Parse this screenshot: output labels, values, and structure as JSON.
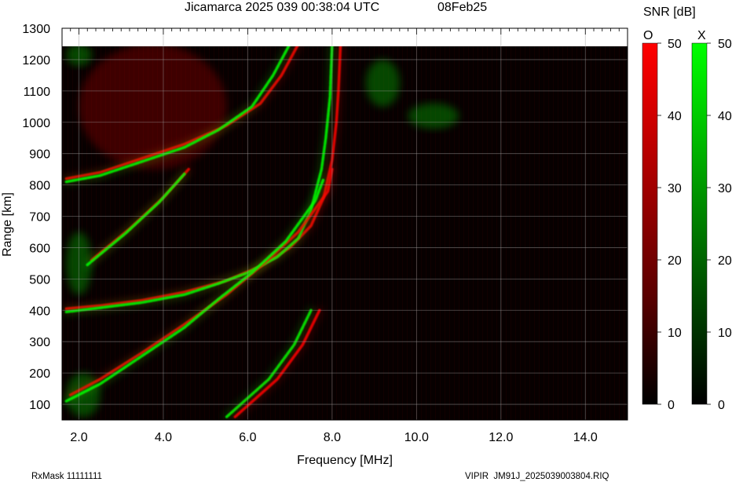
{
  "header": {
    "title": "Jicamarca 2025 039 00:38:04 UTC",
    "date": "08Feb25"
  },
  "footer": {
    "rxmask": "RxMask 11111111",
    "filename": "VIPIR  JM91J_2025039003804.RIQ"
  },
  "colorbar": {
    "title": "SNR [dB]",
    "o_label": "O",
    "x_label": "X",
    "o_color": "#ff0000",
    "x_color": "#00ff00",
    "o_ticks": [
      "50",
      "40",
      "30",
      "20",
      "10",
      "0"
    ],
    "x_ticks": [
      "50",
      "40",
      "30",
      "20",
      "10",
      "0"
    ]
  },
  "chart_data": {
    "type": "heatmap",
    "title": "Jicamarca 2025 039 00:38:04 UTC",
    "xlabel": "Frequency [MHz]",
    "ylabel": "Range [km]",
    "xlim": [
      1.6,
      15.0
    ],
    "ylim": [
      50,
      1300
    ],
    "data_ylim_top": 1250,
    "x_ticks": [
      2,
      4,
      6,
      8,
      10,
      12,
      14
    ],
    "x_tick_labels": [
      "2.0",
      "4.0",
      "6.0",
      "8.0",
      "10.0",
      "12.0",
      "14.0"
    ],
    "y_ticks": [
      100,
      200,
      300,
      400,
      500,
      600,
      700,
      800,
      900,
      1000,
      1100,
      1200,
      1300
    ],
    "y_tick_labels": [
      "100",
      "200",
      "300",
      "400",
      "500",
      "600",
      "700",
      "800",
      "900",
      "1000",
      "1100",
      "1200",
      "1300"
    ],
    "snr_range_db": [
      0,
      50
    ],
    "grid": true,
    "traces": [
      {
        "name": "O",
        "points": [
          [
            1.7,
            405
          ],
          [
            2.5,
            415
          ],
          [
            3.5,
            432
          ],
          [
            4.5,
            458
          ],
          [
            5.5,
            495
          ],
          [
            6.3,
            540
          ],
          [
            7.0,
            600
          ],
          [
            7.5,
            670
          ],
          [
            7.8,
            760
          ],
          [
            8.0,
            880
          ],
          [
            8.1,
            1000
          ],
          [
            8.15,
            1100
          ],
          [
            8.2,
            1250
          ]
        ]
      },
      {
        "name": "X",
        "points": [
          [
            1.7,
            395
          ],
          [
            2.5,
            408
          ],
          [
            3.5,
            425
          ],
          [
            4.5,
            450
          ],
          [
            5.3,
            485
          ],
          [
            6.0,
            520
          ],
          [
            6.7,
            570
          ],
          [
            7.2,
            630
          ],
          [
            7.5,
            720
          ],
          [
            7.75,
            850
          ],
          [
            7.85,
            950
          ],
          [
            7.95,
            1080
          ],
          [
            8.0,
            1250
          ]
        ]
      },
      {
        "name": "O",
        "points": [
          [
            1.7,
            820
          ],
          [
            2.5,
            840
          ],
          [
            3.5,
            885
          ],
          [
            4.5,
            930
          ],
          [
            5.5,
            990
          ],
          [
            6.3,
            1060
          ],
          [
            6.8,
            1150
          ],
          [
            7.2,
            1250
          ]
        ]
      },
      {
        "name": "X",
        "points": [
          [
            1.7,
            810
          ],
          [
            2.5,
            830
          ],
          [
            3.5,
            875
          ],
          [
            4.5,
            920
          ],
          [
            5.3,
            975
          ],
          [
            6.1,
            1050
          ],
          [
            6.6,
            1150
          ],
          [
            7.0,
            1250
          ]
        ]
      },
      {
        "name": "O",
        "points": [
          [
            1.8,
            130
          ],
          [
            2.5,
            180
          ],
          [
            3.5,
            265
          ],
          [
            4.5,
            355
          ],
          [
            5.5,
            450
          ],
          [
            6.3,
            540
          ],
          [
            7.2,
            650
          ],
          [
            7.9,
            780
          ],
          [
            8.0,
            850
          ]
        ]
      },
      {
        "name": "X",
        "points": [
          [
            1.7,
            110
          ],
          [
            2.5,
            165
          ],
          [
            3.5,
            255
          ],
          [
            4.5,
            345
          ],
          [
            5.3,
            435
          ],
          [
            6.1,
            520
          ],
          [
            6.9,
            620
          ],
          [
            7.6,
            750
          ],
          [
            7.8,
            820
          ]
        ]
      },
      {
        "name": "O",
        "points": [
          [
            2.3,
            560
          ],
          [
            3.2,
            660
          ],
          [
            4.0,
            760
          ],
          [
            4.6,
            850
          ]
        ]
      },
      {
        "name": "X",
        "points": [
          [
            2.2,
            545
          ],
          [
            3.1,
            645
          ],
          [
            3.9,
            745
          ],
          [
            4.5,
            835
          ]
        ]
      },
      {
        "name": "X",
        "points": [
          [
            5.5,
            60
          ],
          [
            6.5,
            180
          ],
          [
            7.1,
            290
          ],
          [
            7.5,
            400
          ]
        ]
      },
      {
        "name": "O",
        "points": [
          [
            5.7,
            60
          ],
          [
            6.7,
            180
          ],
          [
            7.3,
            290
          ],
          [
            7.7,
            400
          ]
        ]
      }
    ],
    "diffuse_regions": [
      {
        "name": "X",
        "x": [
          1.7,
          2.3
        ],
        "y": [
          1180,
          1250
        ]
      },
      {
        "name": "X",
        "x": [
          8.8,
          9.6
        ],
        "y": [
          1050,
          1200
        ]
      },
      {
        "name": "X",
        "x": [
          9.8,
          11.0
        ],
        "y": [
          980,
          1060
        ]
      },
      {
        "name": "O",
        "x": [
          2.0,
          5.5
        ],
        "y": [
          850,
          1250
        ]
      },
      {
        "name": "X",
        "x": [
          1.7,
          2.3
        ],
        "y": [
          450,
          650
        ]
      },
      {
        "name": "X",
        "x": [
          1.7,
          2.5
        ],
        "y": [
          60,
          200
        ]
      }
    ]
  }
}
